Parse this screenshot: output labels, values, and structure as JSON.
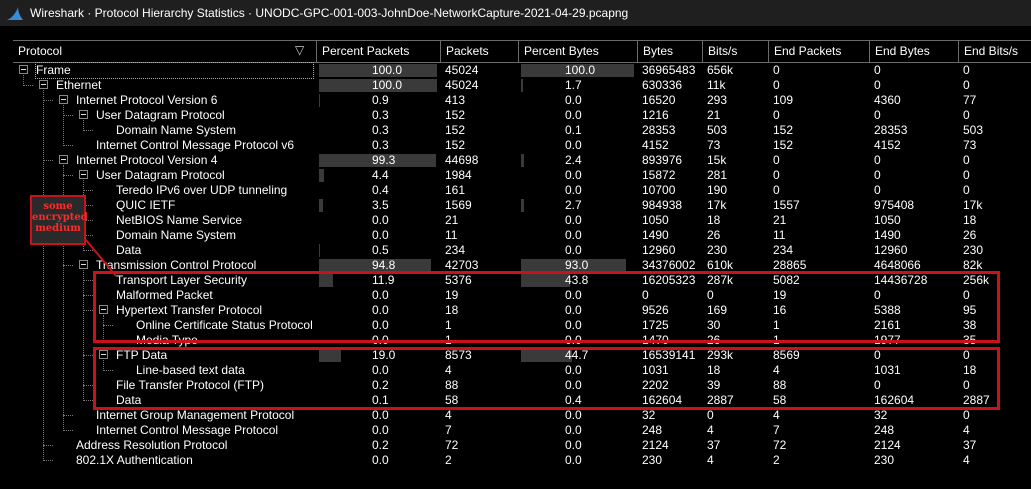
{
  "window": {
    "title": "Wireshark · Protocol Hierarchy Statistics · UNODC-GPC-001-003-JohnDoe-NetworkCapture-2021-04-29.pcapng",
    "app_icon": "shark-fin-icon"
  },
  "columns": [
    "Protocol",
    "Percent Packets",
    "Packets",
    "Percent Bytes",
    "Bytes",
    "Bits/s",
    "End Packets",
    "End Bytes",
    "End Bits/s"
  ],
  "rows": [
    {
      "name": "Frame",
      "depth": 0,
      "expandable": true,
      "pct_packets": "100.0",
      "pct_packets_value": 100.0,
      "packets": "45024",
      "pct_bytes": "100.0",
      "pct_bytes_value": 100.0,
      "bytes": "36965483",
      "bits_s": "656k",
      "end_packets": "0",
      "end_bytes": "0",
      "end_bits_s": "0"
    },
    {
      "name": "Ethernet",
      "depth": 1,
      "expandable": true,
      "pct_packets": "100.0",
      "pct_packets_value": 100.0,
      "packets": "45024",
      "pct_bytes": "1.7",
      "pct_bytes_value": 1.7,
      "bytes": "630336",
      "bits_s": "11k",
      "end_packets": "0",
      "end_bytes": "0",
      "end_bits_s": "0"
    },
    {
      "name": "Internet Protocol Version 6",
      "depth": 2,
      "expandable": true,
      "pct_packets": "0.9",
      "pct_packets_value": 0.9,
      "packets": "413",
      "pct_bytes": "0.0",
      "pct_bytes_value": 0.0,
      "bytes": "16520",
      "bits_s": "293",
      "end_packets": "109",
      "end_bytes": "4360",
      "end_bits_s": "77"
    },
    {
      "name": "User Datagram Protocol",
      "depth": 3,
      "expandable": true,
      "pct_packets": "0.3",
      "pct_packets_value": 0.3,
      "packets": "152",
      "pct_bytes": "0.0",
      "pct_bytes_value": 0.0,
      "bytes": "1216",
      "bits_s": "21",
      "end_packets": "0",
      "end_bytes": "0",
      "end_bits_s": "0"
    },
    {
      "name": "Domain Name System",
      "depth": 4,
      "expandable": false,
      "pct_packets": "0.3",
      "pct_packets_value": 0.3,
      "packets": "152",
      "pct_bytes": "0.1",
      "pct_bytes_value": 0.1,
      "bytes": "28353",
      "bits_s": "503",
      "end_packets": "152",
      "end_bytes": "28353",
      "end_bits_s": "503"
    },
    {
      "name": "Internet Control Message Protocol v6",
      "depth": 3,
      "expandable": false,
      "pct_packets": "0.3",
      "pct_packets_value": 0.3,
      "packets": "152",
      "pct_bytes": "0.0",
      "pct_bytes_value": 0.0,
      "bytes": "4152",
      "bits_s": "73",
      "end_packets": "152",
      "end_bytes": "4152",
      "end_bits_s": "73"
    },
    {
      "name": "Internet Protocol Version 4",
      "depth": 2,
      "expandable": true,
      "pct_packets": "99.3",
      "pct_packets_value": 99.3,
      "packets": "44698",
      "pct_bytes": "2.4",
      "pct_bytes_value": 2.4,
      "bytes": "893976",
      "bits_s": "15k",
      "end_packets": "0",
      "end_bytes": "0",
      "end_bits_s": "0"
    },
    {
      "name": "User Datagram Protocol",
      "depth": 3,
      "expandable": true,
      "pct_packets": "4.4",
      "pct_packets_value": 4.4,
      "packets": "1984",
      "pct_bytes": "0.0",
      "pct_bytes_value": 0.0,
      "bytes": "15872",
      "bits_s": "281",
      "end_packets": "0",
      "end_bytes": "0",
      "end_bits_s": "0"
    },
    {
      "name": "Teredo IPv6 over UDP tunneling",
      "depth": 4,
      "expandable": false,
      "pct_packets": "0.4",
      "pct_packets_value": 0.4,
      "packets": "161",
      "pct_bytes": "0.0",
      "pct_bytes_value": 0.0,
      "bytes": "10700",
      "bits_s": "190",
      "end_packets": "0",
      "end_bytes": "0",
      "end_bits_s": "0"
    },
    {
      "name": "QUIC IETF",
      "depth": 4,
      "expandable": false,
      "pct_packets": "3.5",
      "pct_packets_value": 3.5,
      "packets": "1569",
      "pct_bytes": "2.7",
      "pct_bytes_value": 2.7,
      "bytes": "984938",
      "bits_s": "17k",
      "end_packets": "1557",
      "end_bytes": "975408",
      "end_bits_s": "17k"
    },
    {
      "name": "NetBIOS Name Service",
      "depth": 4,
      "expandable": false,
      "pct_packets": "0.0",
      "pct_packets_value": 0.0,
      "packets": "21",
      "pct_bytes": "0.0",
      "pct_bytes_value": 0.0,
      "bytes": "1050",
      "bits_s": "18",
      "end_packets": "21",
      "end_bytes": "1050",
      "end_bits_s": "18"
    },
    {
      "name": "Domain Name System",
      "depth": 4,
      "expandable": false,
      "pct_packets": "0.0",
      "pct_packets_value": 0.0,
      "packets": "11",
      "pct_bytes": "0.0",
      "pct_bytes_value": 0.0,
      "bytes": "1490",
      "bits_s": "26",
      "end_packets": "11",
      "end_bytes": "1490",
      "end_bits_s": "26"
    },
    {
      "name": "Data",
      "depth": 4,
      "expandable": false,
      "pct_packets": "0.5",
      "pct_packets_value": 0.5,
      "packets": "234",
      "pct_bytes": "0.0",
      "pct_bytes_value": 0.0,
      "bytes": "12960",
      "bits_s": "230",
      "end_packets": "234",
      "end_bytes": "12960",
      "end_bits_s": "230"
    },
    {
      "name": "Transmission Control Protocol",
      "depth": 3,
      "expandable": true,
      "pct_packets": "94.8",
      "pct_packets_value": 94.8,
      "packets": "42703",
      "pct_bytes": "93.0",
      "pct_bytes_value": 93.0,
      "bytes": "34376002",
      "bits_s": "610k",
      "end_packets": "28865",
      "end_bytes": "4648066",
      "end_bits_s": "82k"
    },
    {
      "name": "Transport Layer Security",
      "depth": 4,
      "expandable": false,
      "pct_packets": "11.9",
      "pct_packets_value": 11.9,
      "packets": "5376",
      "pct_bytes": "43.8",
      "pct_bytes_value": 43.8,
      "bytes": "16205323",
      "bits_s": "287k",
      "end_packets": "5082",
      "end_bytes": "14436728",
      "end_bits_s": "256k"
    },
    {
      "name": "Malformed Packet",
      "depth": 4,
      "expandable": false,
      "pct_packets": "0.0",
      "pct_packets_value": 0.0,
      "packets": "19",
      "pct_bytes": "0.0",
      "pct_bytes_value": 0.0,
      "bytes": "0",
      "bits_s": "0",
      "end_packets": "19",
      "end_bytes": "0",
      "end_bits_s": "0"
    },
    {
      "name": "Hypertext Transfer Protocol",
      "depth": 4,
      "expandable": true,
      "pct_packets": "0.0",
      "pct_packets_value": 0.0,
      "packets": "18",
      "pct_bytes": "0.0",
      "pct_bytes_value": 0.0,
      "bytes": "9526",
      "bits_s": "169",
      "end_packets": "16",
      "end_bytes": "5388",
      "end_bits_s": "95"
    },
    {
      "name": "Online Certificate Status Protocol",
      "depth": 5,
      "expandable": false,
      "pct_packets": "0.0",
      "pct_packets_value": 0.0,
      "packets": "1",
      "pct_bytes": "0.0",
      "pct_bytes_value": 0.0,
      "bytes": "1725",
      "bits_s": "30",
      "end_packets": "1",
      "end_bytes": "2161",
      "end_bits_s": "38"
    },
    {
      "name": "Media Type",
      "depth": 5,
      "expandable": false,
      "pct_packets": "0.0",
      "pct_packets_value": 0.0,
      "packets": "1",
      "pct_bytes": "0.0",
      "pct_bytes_value": 0.0,
      "bytes": "1470",
      "bits_s": "26",
      "end_packets": "1",
      "end_bytes": "1977",
      "end_bits_s": "35"
    },
    {
      "name": "FTP Data",
      "depth": 4,
      "expandable": true,
      "pct_packets": "19.0",
      "pct_packets_value": 19.0,
      "packets": "8573",
      "pct_bytes": "44.7",
      "pct_bytes_value": 44.7,
      "bytes": "16539141",
      "bits_s": "293k",
      "end_packets": "8569",
      "end_bytes": "0",
      "end_bits_s": "0"
    },
    {
      "name": "Line-based text data",
      "depth": 5,
      "expandable": false,
      "pct_packets": "0.0",
      "pct_packets_value": 0.0,
      "packets": "4",
      "pct_bytes": "0.0",
      "pct_bytes_value": 0.0,
      "bytes": "1031",
      "bits_s": "18",
      "end_packets": "4",
      "end_bytes": "1031",
      "end_bits_s": "18"
    },
    {
      "name": "File Transfer Protocol (FTP)",
      "depth": 4,
      "expandable": false,
      "pct_packets": "0.2",
      "pct_packets_value": 0.2,
      "packets": "88",
      "pct_bytes": "0.0",
      "pct_bytes_value": 0.0,
      "bytes": "2202",
      "bits_s": "39",
      "end_packets": "88",
      "end_bytes": "0",
      "end_bits_s": "0"
    },
    {
      "name": "Data",
      "depth": 4,
      "expandable": false,
      "pct_packets": "0.1",
      "pct_packets_value": 0.1,
      "packets": "58",
      "pct_bytes": "0.4",
      "pct_bytes_value": 0.4,
      "bytes": "162604",
      "bits_s": "2887",
      "end_packets": "58",
      "end_bytes": "162604",
      "end_bits_s": "2887"
    },
    {
      "name": "Internet Group Management Protocol",
      "depth": 3,
      "expandable": false,
      "pct_packets": "0.0",
      "pct_packets_value": 0.0,
      "packets": "4",
      "pct_bytes": "0.0",
      "pct_bytes_value": 0.0,
      "bytes": "32",
      "bits_s": "0",
      "end_packets": "4",
      "end_bytes": "32",
      "end_bits_s": "0"
    },
    {
      "name": "Internet Control Message Protocol",
      "depth": 3,
      "expandable": false,
      "pct_packets": "0.0",
      "pct_packets_value": 0.0,
      "packets": "7",
      "pct_bytes": "0.0",
      "pct_bytes_value": 0.0,
      "bytes": "248",
      "bits_s": "4",
      "end_packets": "7",
      "end_bytes": "248",
      "end_bits_s": "4"
    },
    {
      "name": "Address Resolution Protocol",
      "depth": 2,
      "expandable": false,
      "pct_packets": "0.2",
      "pct_packets_value": 0.2,
      "packets": "72",
      "pct_bytes": "0.0",
      "pct_bytes_value": 0.0,
      "bytes": "2124",
      "bits_s": "37",
      "end_packets": "72",
      "end_bytes": "2124",
      "end_bits_s": "37"
    },
    {
      "name": "802.1X Authentication",
      "depth": 2,
      "expandable": false,
      "pct_packets": "0.0",
      "pct_packets_value": 0.0,
      "packets": "2",
      "pct_bytes": "0.0",
      "pct_bytes_value": 0.0,
      "bytes": "230",
      "bits_s": "4",
      "end_packets": "2",
      "end_bytes": "230",
      "end_bits_s": "4"
    }
  ],
  "annotation": {
    "lines": [
      "some",
      "encrypted",
      "medium"
    ],
    "color": "#c8131c"
  },
  "colors": {
    "background": "#000000",
    "bar": "#3a3a3a",
    "annotation_red": "#c8131c"
  }
}
